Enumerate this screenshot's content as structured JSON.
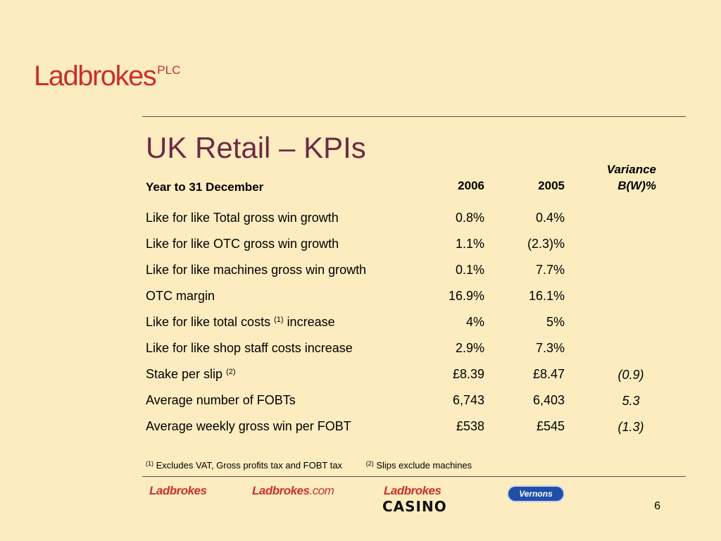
{
  "header": {
    "logo_text": "Ladbrokes",
    "logo_suffix": "PLC"
  },
  "slide": {
    "title": "UK Retail – KPIs",
    "col_label": "Year to 31 December",
    "col_2006": "2006",
    "col_2005": "2005",
    "col_variance_line1": "Variance",
    "col_variance_line2": "B(W)%",
    "rows": [
      {
        "label": "Like for like Total gross win growth",
        "v2006": "0.8%",
        "v2005": "0.4%",
        "variance": ""
      },
      {
        "label": "Like for like OTC gross win growth",
        "v2006": "1.1%",
        "v2005": "(2.3)%",
        "variance": ""
      },
      {
        "label": "Like for like machines gross win growth",
        "v2006": "0.1%",
        "v2005": "7.7%",
        "variance": ""
      },
      {
        "label": "OTC margin",
        "v2006": "16.9%",
        "v2005": "16.1%",
        "variance": ""
      },
      {
        "label": "Like for like total costs",
        "sup": "(1)",
        "label_after": "increase",
        "v2006": "4%",
        "v2005": "5%",
        "variance": ""
      },
      {
        "label": "Like for like shop staff costs increase",
        "v2006": "2.9%",
        "v2005": "7.3%",
        "variance": ""
      },
      {
        "label": "Stake per slip",
        "sup": "(2)",
        "v2006": "£8.39",
        "v2005": "£8.47",
        "variance": "(0.9)"
      },
      {
        "label": "Average number of FOBTs",
        "v2006": "6,743",
        "v2005": "6,403",
        "variance": "5.3"
      },
      {
        "label": "Average weekly gross win per FOBT",
        "v2006": "£538",
        "v2005": "£545",
        "variance": "(1.3)"
      }
    ],
    "footnotes": [
      {
        "marker": "(1)",
        "text": "Excludes VAT, Gross profits tax and FOBT tax"
      },
      {
        "marker": "(2)",
        "text": "Slips exclude machines"
      }
    ]
  },
  "footer": {
    "brand1": "Ladbrokes",
    "brand2_main": "Ladbrokes",
    "brand2_suffix": ".com",
    "brand3_top": "Ladbrokes",
    "brand3_bottom": "CASINO",
    "brand4": "Vernons",
    "page_number": "6"
  },
  "colors": {
    "background": "#fcecc0",
    "title": "#6e2a45",
    "brand_red": "#c8302e",
    "vernons_blue": "#1f4fa8"
  }
}
